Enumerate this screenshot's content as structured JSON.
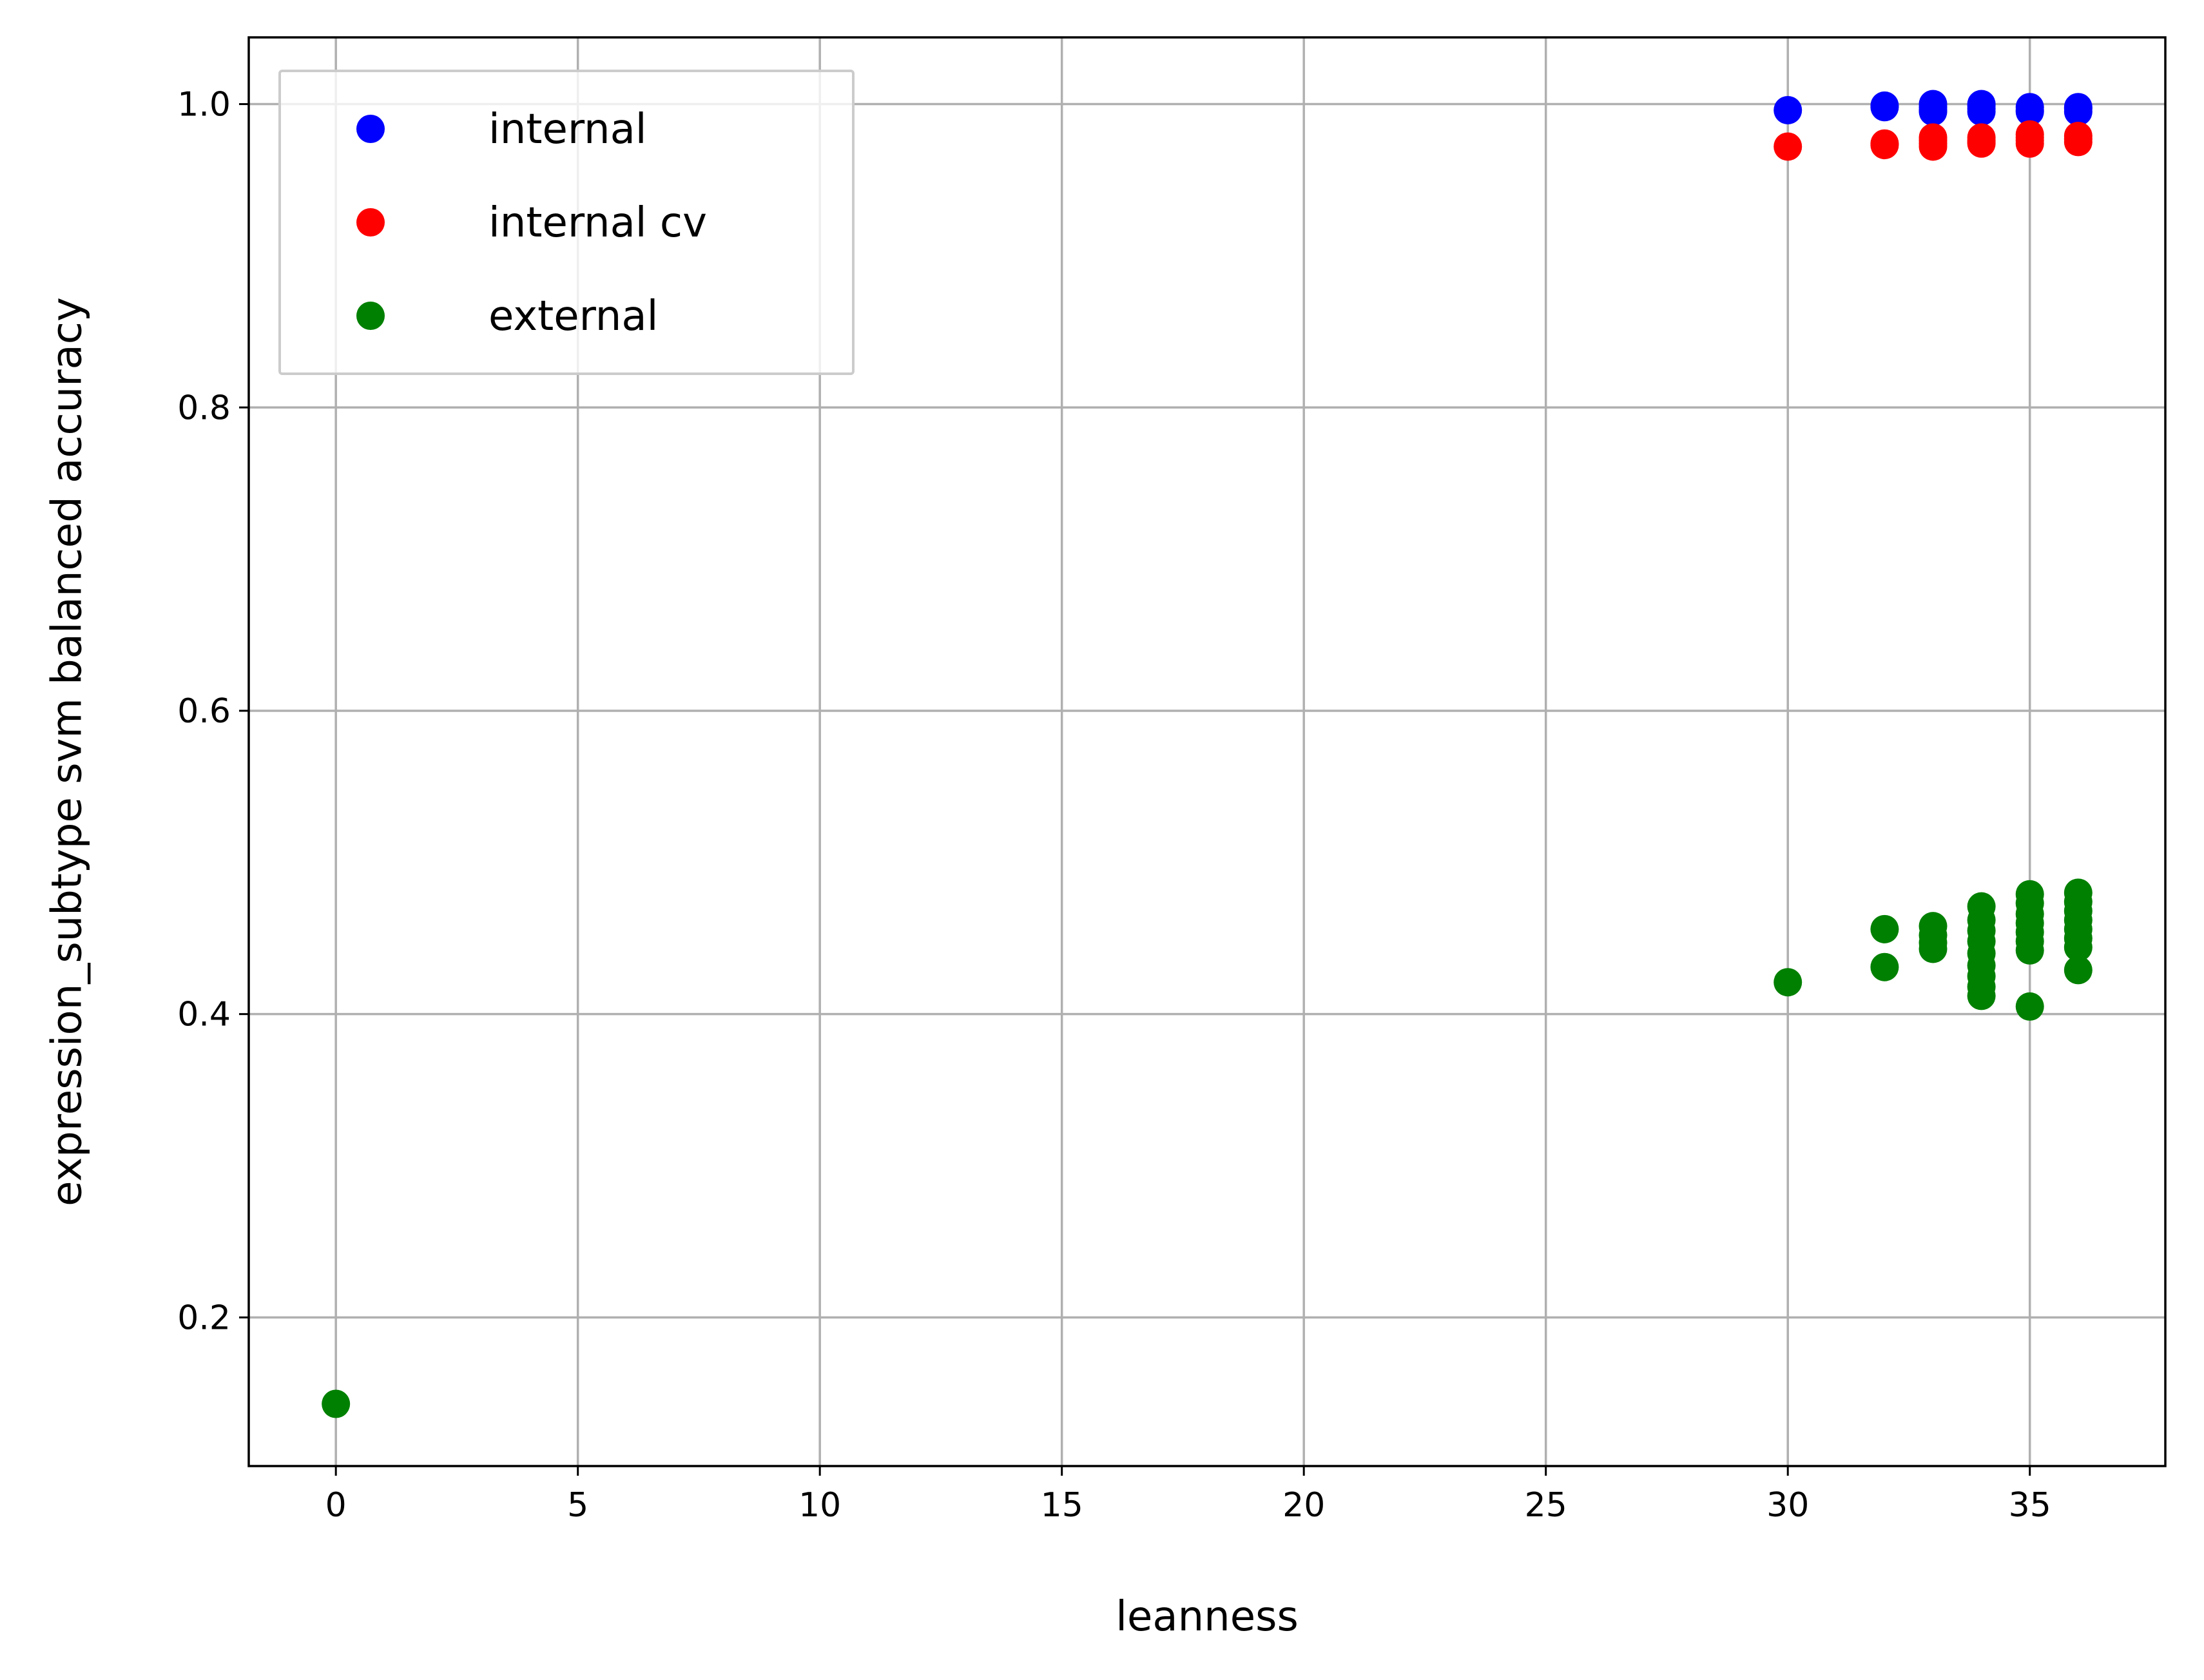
{
  "chart_data": {
    "type": "scatter",
    "title": "",
    "xlabel": "leanness",
    "ylabel": "expression_subtype svm balanced accuracy",
    "xlim": [
      -1.8,
      37.8
    ],
    "ylim": [
      0.102,
      1.044
    ],
    "xticks": [
      0,
      5,
      10,
      15,
      20,
      25,
      30,
      35
    ],
    "xtick_labels": [
      "0",
      "5",
      "10",
      "15",
      "20",
      "25",
      "30",
      "35"
    ],
    "yticks": [
      0.2,
      0.4,
      0.6,
      0.8,
      1.0
    ],
    "ytick_labels": [
      "0.2",
      "0.4",
      "0.6",
      "0.8",
      "1.0"
    ],
    "grid": true,
    "legend_position": "top-left",
    "series": [
      {
        "name": "internal",
        "color": "#0000ff",
        "points": [
          [
            30,
            0.996
          ],
          [
            32,
            0.999
          ],
          [
            32,
            0.998
          ],
          [
            33,
            1.0
          ],
          [
            33,
            0.998
          ],
          [
            33,
            0.996
          ],
          [
            33,
            0.995
          ],
          [
            34,
            1.0
          ],
          [
            34,
            0.999
          ],
          [
            34,
            0.997
          ],
          [
            34,
            0.995
          ],
          [
            35,
            0.998
          ],
          [
            35,
            0.996
          ],
          [
            35,
            0.995
          ],
          [
            36,
            0.998
          ],
          [
            36,
            0.997
          ],
          [
            36,
            0.995
          ]
        ]
      },
      {
        "name": "internal cv",
        "color": "#ff0000",
        "points": [
          [
            30,
            0.972
          ],
          [
            32,
            0.974
          ],
          [
            32,
            0.973
          ],
          [
            33,
            0.978
          ],
          [
            33,
            0.976
          ],
          [
            33,
            0.974
          ],
          [
            33,
            0.972
          ],
          [
            34,
            0.978
          ],
          [
            34,
            0.976
          ],
          [
            34,
            0.974
          ],
          [
            34,
            0.975
          ],
          [
            35,
            0.98
          ],
          [
            35,
            0.978
          ],
          [
            35,
            0.976
          ],
          [
            35,
            0.974
          ],
          [
            36,
            0.979
          ],
          [
            36,
            0.977
          ],
          [
            36,
            0.975
          ]
        ]
      },
      {
        "name": "external",
        "color": "#008000",
        "points": [
          [
            0,
            0.143
          ],
          [
            30,
            0.421
          ],
          [
            32,
            0.456
          ],
          [
            32,
            0.431
          ],
          [
            33,
            0.458
          ],
          [
            33,
            0.452
          ],
          [
            33,
            0.447
          ],
          [
            33,
            0.443
          ],
          [
            34,
            0.471
          ],
          [
            34,
            0.462
          ],
          [
            34,
            0.455
          ],
          [
            34,
            0.448
          ],
          [
            34,
            0.44
          ],
          [
            34,
            0.432
          ],
          [
            34,
            0.425
          ],
          [
            34,
            0.418
          ],
          [
            34,
            0.412
          ],
          [
            35,
            0.479
          ],
          [
            35,
            0.473
          ],
          [
            35,
            0.466
          ],
          [
            35,
            0.46
          ],
          [
            35,
            0.454
          ],
          [
            35,
            0.448
          ],
          [
            35,
            0.442
          ],
          [
            35,
            0.405
          ],
          [
            36,
            0.48
          ],
          [
            36,
            0.474
          ],
          [
            36,
            0.468
          ],
          [
            36,
            0.462
          ],
          [
            36,
            0.456
          ],
          [
            36,
            0.45
          ],
          [
            36,
            0.444
          ],
          [
            36,
            0.429
          ]
        ]
      }
    ]
  }
}
